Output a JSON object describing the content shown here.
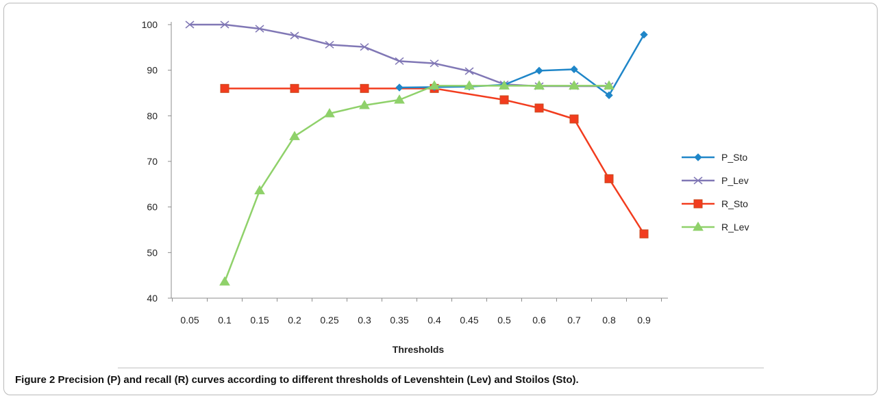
{
  "chart_data": {
    "type": "line",
    "xlabel": "Thresholds",
    "ylabel": "",
    "ylim": [
      40,
      100
    ],
    "yticks": [
      40,
      50,
      60,
      70,
      80,
      90,
      100
    ],
    "categories": [
      "0.05",
      "0.1",
      "0.15",
      "0.2",
      "0.25",
      "0.3",
      "0.35",
      "0.4",
      "0.45",
      "0.5",
      "0.6",
      "0.7",
      "0.8",
      "0.9"
    ],
    "grid": false,
    "legend_position": "right",
    "series": [
      {
        "name": "P_Sto",
        "color": "#1f86c8",
        "marker": "diamond",
        "x": [
          "0.35",
          "0.4",
          "0.45",
          "0.5",
          "0.6",
          "0.7",
          "0.8",
          "0.9"
        ],
        "values": [
          86.2,
          86.3,
          86.4,
          86.8,
          89.9,
          90.2,
          84.5,
          97.8
        ]
      },
      {
        "name": "P_Lev",
        "color": "#8077b5",
        "marker": "x",
        "x": [
          "0.05",
          "0.1",
          "0.15",
          "0.2",
          "0.25",
          "0.3",
          "0.35",
          "0.4",
          "0.45",
          "0.5",
          "0.6",
          "0.7",
          "0.8"
        ],
        "values": [
          100.0,
          100.0,
          99.1,
          97.6,
          95.6,
          95.1,
          92.0,
          91.5,
          89.8,
          86.9,
          86.5,
          86.5,
          86.5
        ]
      },
      {
        "name": "R_Sto",
        "color": "#f23c1e",
        "marker": "square",
        "x": [
          "0.1",
          "0.2",
          "0.3",
          "0.4",
          "0.5",
          "0.6",
          "0.7",
          "0.8",
          "0.9"
        ],
        "values": [
          86.0,
          86.0,
          86.0,
          86.0,
          83.5,
          81.7,
          79.3,
          66.2,
          54.1
        ]
      },
      {
        "name": "R_Lev",
        "color": "#8fd16a",
        "marker": "triangle",
        "x": [
          "0.1",
          "0.15",
          "0.2",
          "0.25",
          "0.3",
          "0.35",
          "0.4",
          "0.45",
          "0.5",
          "0.6",
          "0.7",
          "0.8"
        ],
        "values": [
          43.6,
          63.6,
          75.5,
          80.5,
          82.3,
          83.5,
          86.6,
          86.6,
          86.6,
          86.6,
          86.6,
          86.6
        ]
      }
    ]
  },
  "caption": {
    "label": "Figure 2",
    "text": "Precision (P) and recall (R) curves according to different thresholds of Levenshtein (Lev) and Stoilos (Sto)."
  }
}
